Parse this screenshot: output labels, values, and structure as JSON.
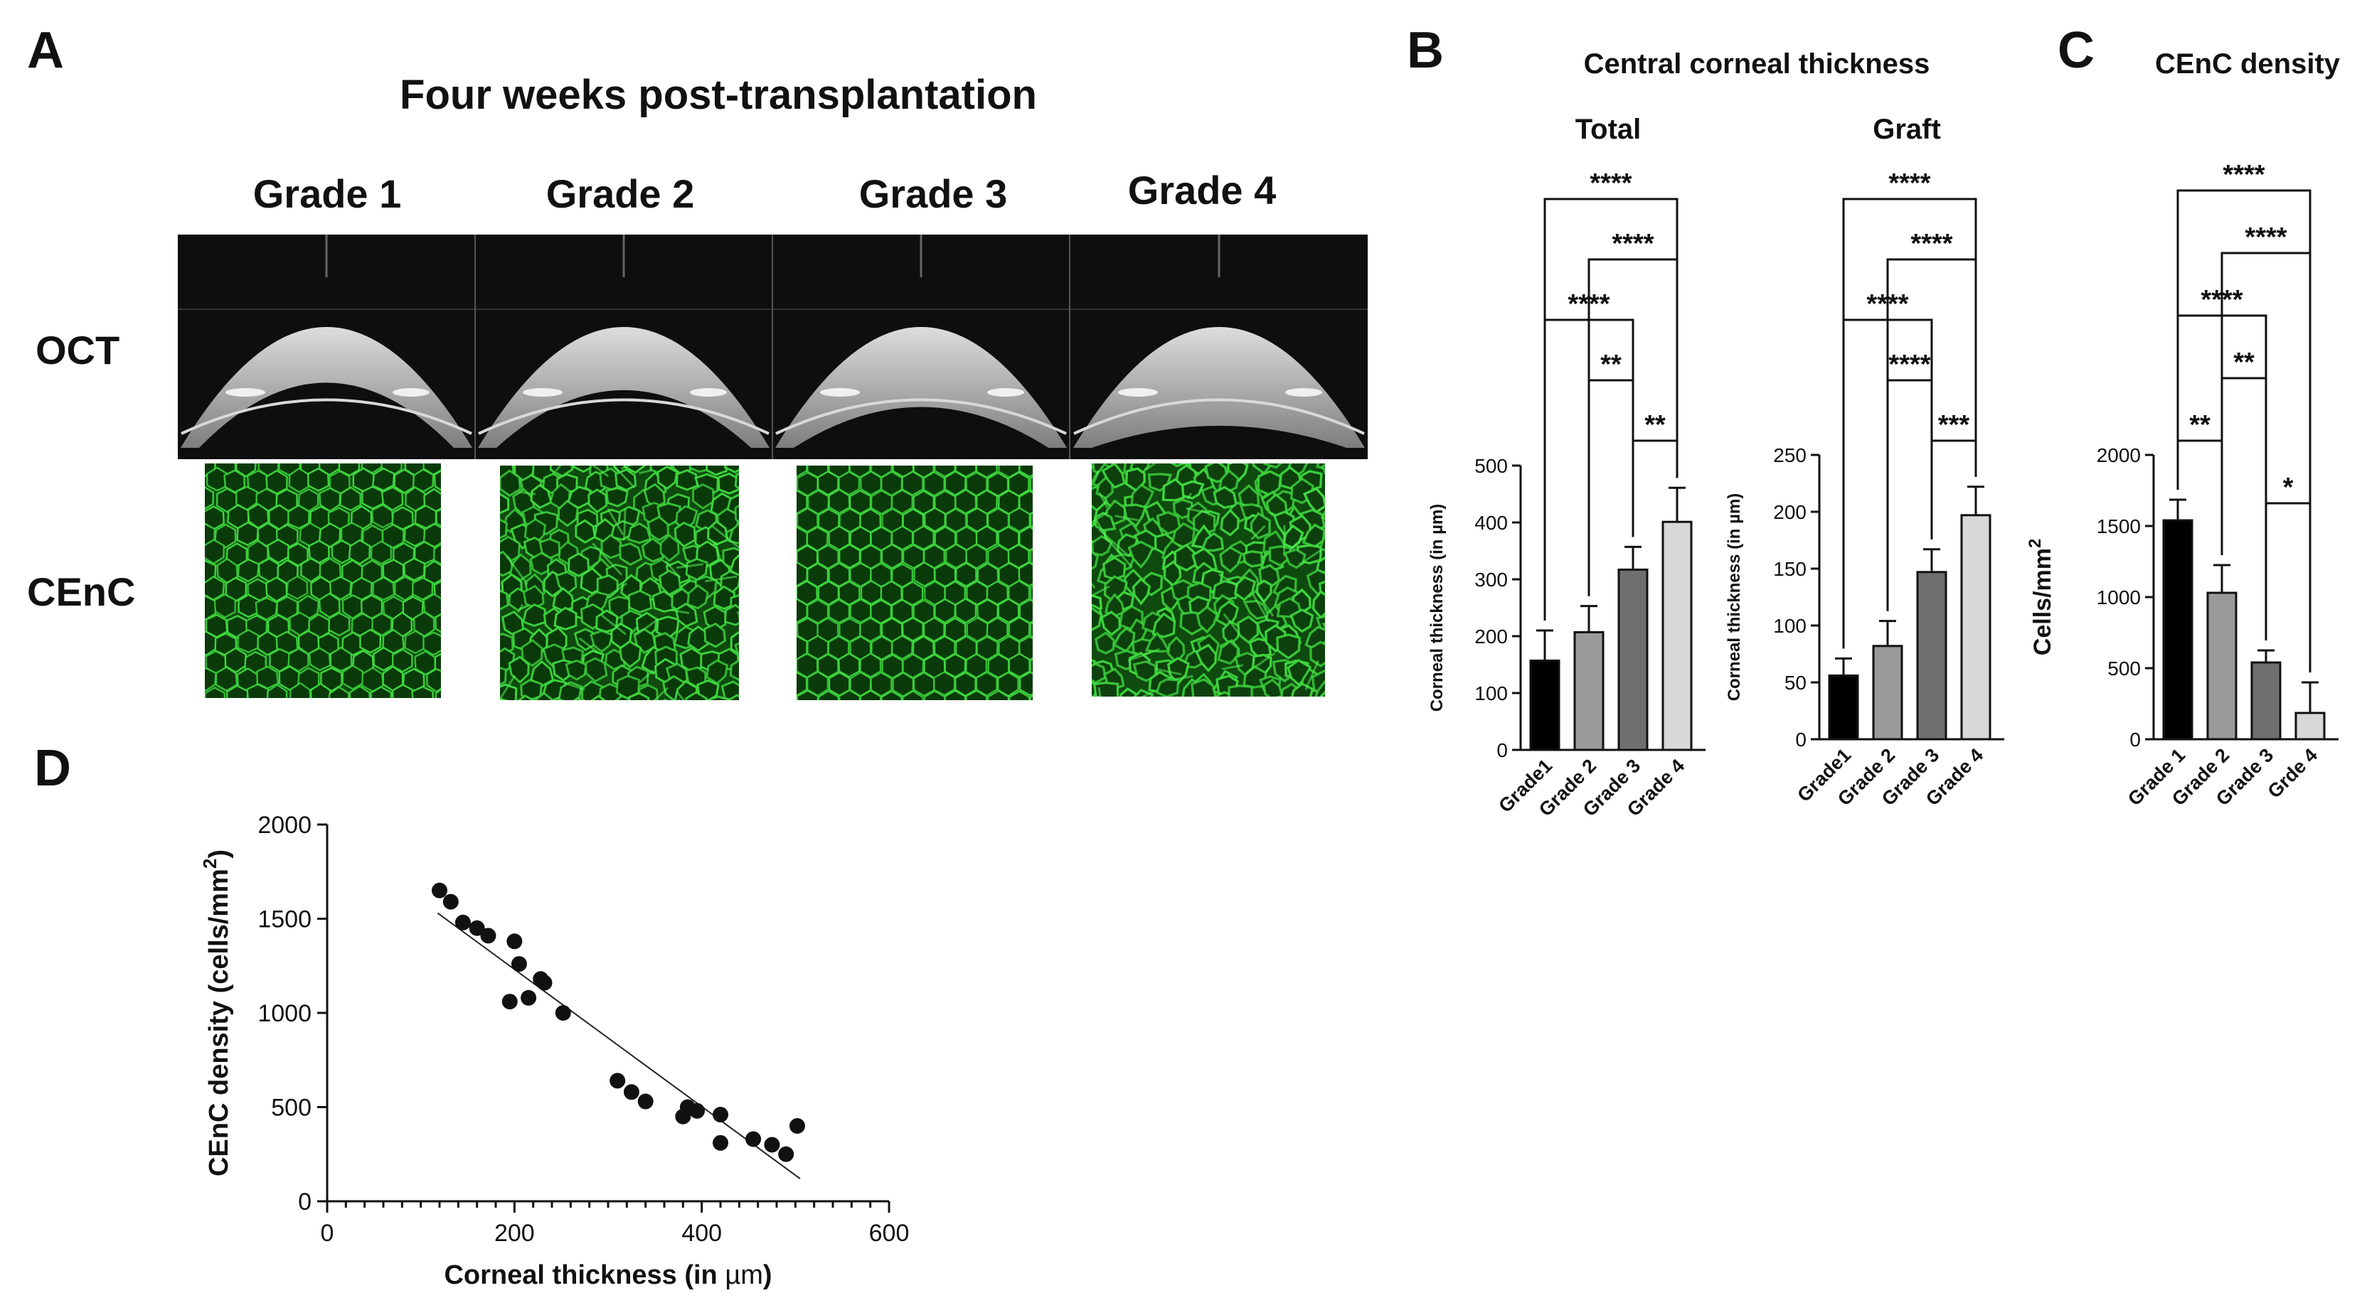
{
  "panel_a": {
    "letter": "A",
    "title": "Four weeks post-transplantation",
    "grades": [
      "Grade 1",
      "Grade 2",
      "Grade 3",
      "Grade 4"
    ],
    "row_labels": [
      "OCT",
      "CEnC"
    ],
    "oct_thickness": [
      0.26,
      0.34,
      0.52,
      0.72
    ],
    "cenc_regularity": [
      0.85,
      0.55,
      0.95,
      0.25
    ]
  },
  "panel_b": {
    "letter": "B",
    "title": "Central corneal thickness"
  },
  "panel_c": {
    "letter": "C",
    "title": "CEnC density"
  },
  "panel_d": {
    "letter": "D"
  },
  "chart_data": [
    {
      "type": "bar",
      "title": "Total",
      "ylabel": "Corneal thickness (in µm)",
      "categories": [
        "Grade1",
        "Grade 2",
        "Grade 3",
        "Grade 4"
      ],
      "values": [
        157,
        207,
        317,
        401
      ],
      "errors": [
        53,
        46,
        40,
        60
      ],
      "ylim": [
        0,
        500
      ],
      "yticks": [
        0,
        100,
        200,
        300,
        400,
        500
      ],
      "colors": [
        "#000000",
        "#9a9a9a",
        "#6f6f6f",
        "#d8d8d8"
      ],
      "significance": [
        {
          "from": 0,
          "to": 3,
          "label": "****"
        },
        {
          "from": 1,
          "to": 3,
          "label": "****"
        },
        {
          "from": 0,
          "to": 2,
          "label": "****"
        },
        {
          "from": 1,
          "to": 2,
          "label": "**"
        },
        {
          "from": 2,
          "to": 3,
          "label": "**"
        }
      ]
    },
    {
      "type": "bar",
      "title": "Graft",
      "ylabel": "Corneal thickness (in µm)",
      "categories": [
        "Grade1",
        "Grade 2",
        "Grade 3",
        "Grade 4"
      ],
      "values": [
        56,
        82,
        147,
        197
      ],
      "errors": [
        15,
        22,
        20,
        25
      ],
      "ylim": [
        0,
        250
      ],
      "yticks": [
        0,
        50,
        100,
        150,
        200,
        250
      ],
      "colors": [
        "#000000",
        "#9a9a9a",
        "#6f6f6f",
        "#d8d8d8"
      ],
      "significance": [
        {
          "from": 0,
          "to": 3,
          "label": "****"
        },
        {
          "from": 1,
          "to": 3,
          "label": "****"
        },
        {
          "from": 0,
          "to": 2,
          "label": "****"
        },
        {
          "from": 1,
          "to": 2,
          "label": "****"
        },
        {
          "from": 2,
          "to": 3,
          "label": "***"
        }
      ]
    },
    {
      "type": "bar",
      "title": "",
      "ylabel": "Cells/mm",
      "ylabel_sup": "2",
      "categories": [
        "Grade 1",
        "Grade 2",
        "Grade 3",
        "Grde 4"
      ],
      "values": [
        1540,
        1030,
        540,
        185
      ],
      "errors": [
        145,
        195,
        85,
        215
      ],
      "ylim": [
        0,
        2000
      ],
      "yticks": [
        0,
        500,
        1000,
        1500,
        2000
      ],
      "colors": [
        "#000000",
        "#9a9a9a",
        "#6f6f6f",
        "#d8d8d8"
      ],
      "significance": [
        {
          "from": 0,
          "to": 3,
          "label": "****"
        },
        {
          "from": 1,
          "to": 3,
          "label": "****"
        },
        {
          "from": 0,
          "to": 2,
          "label": "****"
        },
        {
          "from": 1,
          "to": 2,
          "label": "**"
        },
        {
          "from": 0,
          "to": 1,
          "label": "**"
        },
        {
          "from": 2,
          "to": 3,
          "label": "*"
        }
      ]
    },
    {
      "type": "scatter",
      "title": "",
      "xlabel": "Corneal thickness (in ",
      "xlabel_mu": "µm",
      "xlabel_end": ")",
      "ylabel": "CEnC density (cells/mm",
      "ylabel_sup": "2",
      "ylabel_end": ")",
      "xlim": [
        0,
        600
      ],
      "ylim": [
        0,
        2000
      ],
      "xticks": [
        0,
        200,
        400,
        600
      ],
      "yticks": [
        0,
        500,
        1000,
        1500,
        2000
      ],
      "points": [
        [
          120,
          1650
        ],
        [
          132,
          1590
        ],
        [
          145,
          1480
        ],
        [
          160,
          1450
        ],
        [
          172,
          1410
        ],
        [
          195,
          1060
        ],
        [
          200,
          1380
        ],
        [
          205,
          1260
        ],
        [
          215,
          1080
        ],
        [
          228,
          1180
        ],
        [
          232,
          1160
        ],
        [
          252,
          1000
        ],
        [
          310,
          640
        ],
        [
          325,
          580
        ],
        [
          340,
          530
        ],
        [
          380,
          450
        ],
        [
          385,
          500
        ],
        [
          395,
          480
        ],
        [
          420,
          460
        ],
        [
          420,
          310
        ],
        [
          455,
          330
        ],
        [
          475,
          300
        ],
        [
          490,
          250
        ],
        [
          502,
          400
        ]
      ],
      "fit_line": [
        [
          118,
          1530
        ],
        [
          505,
          120
        ]
      ]
    }
  ]
}
